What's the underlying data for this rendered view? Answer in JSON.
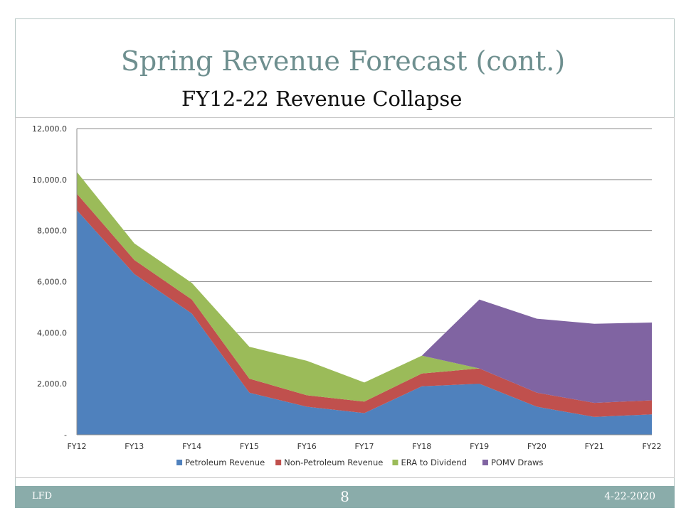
{
  "slide": {
    "title": "Spring Revenue Forecast (cont.)",
    "subtitle": "FY12-22 Revenue Collapse",
    "footer_left": "LFD",
    "page_number": "8",
    "date": "4-22-2020",
    "colors": {
      "title": "#6e8f8f",
      "footer_bar": "#8aacaa"
    }
  },
  "chart_data": {
    "type": "area",
    "stacked": true,
    "categories": [
      "FY12",
      "FY13",
      "FY14",
      "FY15",
      "FY16",
      "FY17",
      "FY18",
      "FY19",
      "FY20",
      "FY21",
      "FY22"
    ],
    "ylim": [
      0,
      12000
    ],
    "yticks": [
      0,
      2000,
      4000,
      6000,
      8000,
      10000,
      12000
    ],
    "ytick_labels": [
      "-",
      "2,000.0",
      "4,000.0",
      "6,000.0",
      "8,000.0",
      "10,000.0",
      "12,000.0"
    ],
    "grid": true,
    "legend_position": "bottom",
    "series": [
      {
        "name": "Petroleum Revenue",
        "color": "#4f81bd",
        "values": [
          8800,
          6300,
          4750,
          1650,
          1100,
          850,
          1900,
          2000,
          1100,
          700,
          800
        ]
      },
      {
        "name": "Non-Petroleum Revenue",
        "color": "#c0504d",
        "values": [
          650,
          550,
          550,
          550,
          450,
          450,
          500,
          600,
          550,
          550,
          550
        ]
      },
      {
        "name": "ERA to Dividend",
        "color": "#9bbb59",
        "values": [
          850,
          650,
          650,
          1250,
          1350,
          750,
          700,
          0,
          0,
          0,
          0
        ]
      },
      {
        "name": "POMV Draws",
        "color": "#8064a2",
        "values": [
          0,
          0,
          0,
          0,
          0,
          0,
          0,
          2700,
          2900,
          3100,
          3050
        ]
      }
    ]
  }
}
